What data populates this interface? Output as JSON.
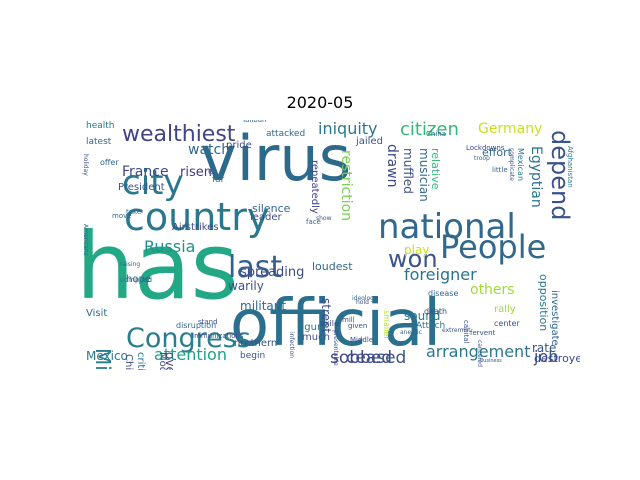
{
  "title": "2020-05",
  "palette": {
    "dark_purple": "#46327e",
    "slate_blue": "#365c8d",
    "steel_blue": "#277f8e",
    "teal": "#1fa187",
    "green": "#4ac16d",
    "yellow_green": "#a0da39",
    "yellow": "#c9d224"
  },
  "words": [
    {
      "text": "virus",
      "color": "#2c6a8c"
    },
    {
      "text": "has",
      "color": "#22a884"
    },
    {
      "text": "official",
      "color": "#2a6f8e"
    },
    {
      "text": "country",
      "color": "#2a788e"
    },
    {
      "text": "city",
      "color": "#2a788e"
    },
    {
      "text": "national",
      "color": "#31688e"
    },
    {
      "text": "People",
      "color": "#31688e"
    },
    {
      "text": "Congress",
      "color": "#287d8e"
    },
    {
      "text": "last",
      "color": "#355f8d"
    },
    {
      "text": "wealthiest",
      "color": "#414487"
    },
    {
      "text": "depend",
      "color": "#3b528b"
    },
    {
      "text": "Mideast",
      "color": "#2a788e"
    },
    {
      "text": "won",
      "color": "#3b528b"
    },
    {
      "text": "foreigner",
      "color": "#2c728e"
    },
    {
      "text": "iniquity",
      "color": "#2a788e"
    },
    {
      "text": "citizen",
      "color": "#35b779"
    },
    {
      "text": "Germany",
      "color": "#c8e020"
    },
    {
      "text": "sobbed",
      "color": "#414487"
    },
    {
      "text": "ceased",
      "color": "#3b528b"
    },
    {
      "text": "arrangement",
      "color": "#2a788e"
    },
    {
      "text": "attention",
      "color": "#1fa187"
    },
    {
      "text": "restriction",
      "color": "#7ad151"
    },
    {
      "text": "drawn",
      "color": "#3e4a89"
    },
    {
      "text": "jailed",
      "color": "#3b528b"
    },
    {
      "text": "Russia",
      "color": "#21918c"
    },
    {
      "text": "France",
      "color": "#3e4a89"
    },
    {
      "text": "watch",
      "color": "#31688e"
    },
    {
      "text": "risen",
      "color": "#443983"
    },
    {
      "text": "job",
      "color": "#3b528b"
    },
    {
      "text": "others",
      "color": "#a0da39"
    },
    {
      "text": "play",
      "color": "#c8e020"
    },
    {
      "text": "sound",
      "color": "#2a788e"
    },
    {
      "text": "street",
      "color": "#3e4a89"
    },
    {
      "text": "rate",
      "color": "#3b528b"
    },
    {
      "text": "spreading",
      "color": "#3e4a89"
    },
    {
      "text": "militant",
      "color": "#31688e"
    },
    {
      "text": "warily",
      "color": "#3b528b"
    },
    {
      "text": "Mexico",
      "color": "#2a788e"
    },
    {
      "text": "Egyptian",
      "color": "#2a788e"
    },
    {
      "text": "muffled",
      "color": "#3b528b"
    },
    {
      "text": "musician",
      "color": "#31688e"
    },
    {
      "text": "relative",
      "color": "#35b779"
    },
    {
      "text": "effort",
      "color": "#31688e"
    },
    {
      "text": "opposition",
      "color": "#2a788e"
    },
    {
      "text": "investigate",
      "color": "#31688e"
    },
    {
      "text": "destroyed",
      "color": "#3e4a89"
    },
    {
      "text": "President",
      "color": "#3b528b"
    },
    {
      "text": "repeatedly",
      "color": "#414487"
    },
    {
      "text": "loudest",
      "color": "#31688e"
    },
    {
      "text": "silence",
      "color": "#31688e"
    },
    {
      "text": "leader",
      "color": "#3e4a89"
    },
    {
      "text": "northern",
      "color": "#3b528b"
    },
    {
      "text": "figure",
      "color": "#2a788e"
    },
    {
      "text": "much",
      "color": "#3b528b"
    },
    {
      "text": "hope",
      "color": "#3b528b"
    },
    {
      "text": "critic",
      "color": "#2a788e"
    },
    {
      "text": "overrun",
      "color": "#414487"
    },
    {
      "text": "Visit",
      "color": "#31688e"
    },
    {
      "text": "Chinese",
      "color": "#3e4a89"
    },
    {
      "text": "Model",
      "color": "#3e4a89"
    },
    {
      "text": "begin",
      "color": "#3b528b"
    },
    {
      "text": "Airstrikes",
      "color": "#3e4a89"
    },
    {
      "text": "attacked",
      "color": "#31688e"
    },
    {
      "text": "pride",
      "color": "#3e4a89"
    },
    {
      "text": "health",
      "color": "#2a788e"
    },
    {
      "text": "latest",
      "color": "#31688e"
    },
    {
      "text": "offer",
      "color": "#31688e"
    },
    {
      "text": "Attach",
      "color": "#2a788e"
    },
    {
      "text": "death",
      "color": "#3b528b"
    },
    {
      "text": "center",
      "color": "#3b528b"
    },
    {
      "text": "disease",
      "color": "#31688e"
    },
    {
      "text": "exile",
      "color": "#3e4a89"
    },
    {
      "text": "mill",
      "color": "#3e4a89"
    },
    {
      "text": "given",
      "color": "#3b528b"
    },
    {
      "text": "rally",
      "color": "#a0da39"
    },
    {
      "text": "capital",
      "color": "#3b528b"
    },
    {
      "text": "far",
      "color": "#31688e"
    },
    {
      "text": "el",
      "color": "#31688e"
    },
    {
      "text": "Taliban",
      "color": "#31688e"
    },
    {
      "text": "Immunizations",
      "color": "#3e4a89"
    },
    {
      "text": "disruption",
      "color": "#31688e"
    },
    {
      "text": "Mexican",
      "color": "#2a788e"
    },
    {
      "text": "Afghanistan",
      "color": "#2a788e"
    },
    {
      "text": "China",
      "color": "#31688e"
    },
    {
      "text": "little",
      "color": "#31688e"
    },
    {
      "text": "complied",
      "color": "#2a788e"
    },
    {
      "text": "take",
      "color": "#31688e"
    },
    {
      "text": "move",
      "color": "#31688e"
    },
    {
      "text": "stand",
      "color": "#3b528b"
    },
    {
      "text": "face",
      "color": "#31688e"
    },
    {
      "text": "show",
      "color": "#3b528b"
    },
    {
      "text": "hold",
      "color": "#3e4a89"
    },
    {
      "text": "Lockdowns",
      "color": "#3e4a89"
    },
    {
      "text": "fervent",
      "color": "#3b528b"
    },
    {
      "text": "Americans",
      "color": "#31688e"
    },
    {
      "text": "holiday",
      "color": "#3e4a89"
    },
    {
      "text": "raising",
      "color": "#31688e"
    },
    {
      "text": "smaller",
      "color": "#b5de2b"
    },
    {
      "text": "Middle",
      "color": "#3e4a89"
    },
    {
      "text": "canceled",
      "color": "#3b528b"
    },
    {
      "text": "ideology",
      "color": "#31688e"
    },
    {
      "text": "extremist",
      "color": "#3b528b"
    },
    {
      "text": "anemic",
      "color": "#31688e"
    },
    {
      "text": "infection",
      "color": "#3b528b"
    },
    {
      "text": "business",
      "color": "#3b528b"
    },
    {
      "text": "presentable",
      "color": "#3b528b"
    },
    {
      "text": "troop",
      "color": "#31688e"
    },
    {
      "text": "complicate",
      "color": "#3b528b"
    }
  ]
}
